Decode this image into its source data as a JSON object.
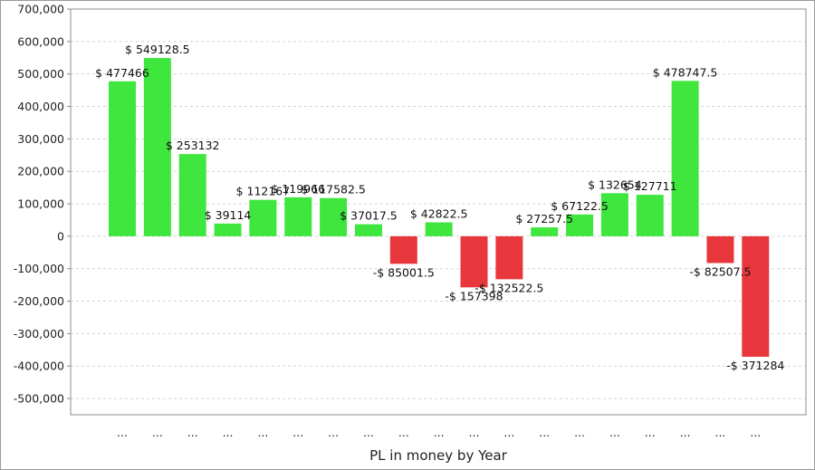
{
  "chart_data": {
    "type": "bar",
    "title": "",
    "xlabel": "PL in money by Year",
    "ylabel": "",
    "ylim": [
      -550000,
      700000
    ],
    "yticks": [
      700000,
      600000,
      500000,
      400000,
      300000,
      200000,
      100000,
      0,
      -100000,
      -200000,
      -300000,
      -400000,
      -500000
    ],
    "ytick_labels": [
      "700,000",
      "600,000",
      "500,000",
      "400,000",
      "300,000",
      "200,000",
      "100,000",
      "0",
      "-100,000",
      "-200,000",
      "-300,000",
      "-400,000",
      "-500,000"
    ],
    "grid": true,
    "legend": "none",
    "categories": [
      "...",
      "...",
      "...",
      "...",
      "...",
      "...",
      "...",
      "...",
      "...",
      "...",
      "...",
      "...",
      "...",
      "...",
      "...",
      "...",
      "...",
      "...",
      "..."
    ],
    "values": [
      477466,
      549128.5,
      253132,
      39114,
      112167,
      119966,
      117582.5,
      37017.5,
      -85001.5,
      42822.5,
      -157398,
      -132522.5,
      27257.5,
      67122.5,
      132654,
      127711,
      478747.5,
      -82507.5,
      -371284
    ],
    "data_labels": [
      "$ 477466",
      "$ 549128.5",
      "$ 253132",
      "$ 39114",
      "$ 112167",
      "$ 119966",
      "$ 117582.5",
      "$ 37017.5",
      "-$ 85001.5",
      "$ 42822.5",
      "-$ 157398",
      "-$ 132522.5",
      "$ 27257.5",
      "$ 67122.5",
      "$ 132654",
      "$ 127711",
      "$ 478747.5",
      "-$ 82507.5",
      "-$ 371284"
    ],
    "colors": {
      "positive": "#3ee63e",
      "negative": "#e8373c",
      "grid": "#d4d4d4",
      "axis": "#8c8c8c"
    }
  }
}
